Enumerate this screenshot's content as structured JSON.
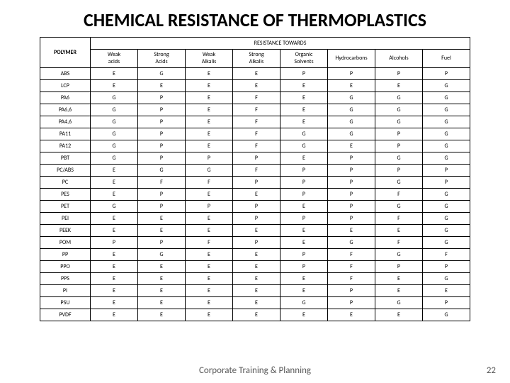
{
  "title": "CHEMICAL RESISTANCE OF THERMOPLASTICS",
  "group_header": "RESISTANCE TOWARDS",
  "polymer_header": "POLYMER",
  "columns": [
    "Weak acids",
    "Strong Acids",
    "Weak Alkalis",
    "Strong Alkalis",
    "Organic Solvents",
    "Hydrocarbons",
    "Alcohols",
    "Fuel"
  ],
  "rows": [
    {
      "polymer": "ABS",
      "vals": [
        "E",
        "G",
        "E",
        "E",
        "P",
        "P",
        "P",
        "P"
      ]
    },
    {
      "polymer": "LCP",
      "vals": [
        "E",
        "E",
        "E",
        "E",
        "E",
        "E",
        "E",
        "G"
      ]
    },
    {
      "polymer": "PA6",
      "vals": [
        "G",
        "P",
        "E",
        "F",
        "E",
        "G",
        "G",
        "G"
      ]
    },
    {
      "polymer": "PA6,6",
      "vals": [
        "G",
        "P",
        "E",
        "F",
        "E",
        "G",
        "G",
        "G"
      ]
    },
    {
      "polymer": "PA4,6",
      "vals": [
        "G",
        "P",
        "E",
        "F",
        "E",
        "G",
        "G",
        "G"
      ]
    },
    {
      "polymer": "PA11",
      "vals": [
        "G",
        "P",
        "E",
        "F",
        "G",
        "G",
        "P",
        "G"
      ]
    },
    {
      "polymer": "PA12",
      "vals": [
        "G",
        "P",
        "E",
        "F",
        "G",
        "E",
        "P",
        "G"
      ]
    },
    {
      "polymer": "PBT",
      "vals": [
        "G",
        "P",
        "P",
        "P",
        "E",
        "P",
        "G",
        "G"
      ]
    },
    {
      "polymer": "PC/ABS",
      "vals": [
        "E",
        "G",
        "G",
        "F",
        "P",
        "P",
        "P",
        "P"
      ]
    },
    {
      "polymer": "PC",
      "vals": [
        "E",
        "F",
        "F",
        "P",
        "P",
        "P",
        "G",
        "P"
      ]
    },
    {
      "polymer": "PES",
      "vals": [
        "E",
        "P",
        "E",
        "E",
        "P",
        "P",
        "F",
        "G"
      ]
    },
    {
      "polymer": "PET",
      "vals": [
        "G",
        "P",
        "P",
        "P",
        "E",
        "P",
        "G",
        "G"
      ]
    },
    {
      "polymer": "PEI",
      "vals": [
        "E",
        "E",
        "E",
        "P",
        "P",
        "P",
        "F",
        "G"
      ]
    },
    {
      "polymer": "PEEK",
      "vals": [
        "E",
        "E",
        "E",
        "E",
        "E",
        "E",
        "E",
        "G"
      ]
    },
    {
      "polymer": "POM",
      "vals": [
        "P",
        "P",
        "F",
        "P",
        "E",
        "G",
        "F",
        "G"
      ]
    },
    {
      "polymer": "PP",
      "vals": [
        "E",
        "G",
        "E",
        "E",
        "P",
        "F",
        "G",
        "F"
      ]
    },
    {
      "polymer": "PPO",
      "vals": [
        "E",
        "E",
        "E",
        "E",
        "P",
        "F",
        "P",
        "P"
      ]
    },
    {
      "polymer": "PPS",
      "vals": [
        "E",
        "E",
        "E",
        "E",
        "E",
        "F",
        "E",
        "G"
      ]
    },
    {
      "polymer": "PI",
      "vals": [
        "E",
        "E",
        "E",
        "E",
        "E",
        "P",
        "E",
        "E"
      ]
    },
    {
      "polymer": "PSU",
      "vals": [
        "E",
        "E",
        "E",
        "E",
        "G",
        "P",
        "G",
        "P"
      ]
    },
    {
      "polymer": "PVDF",
      "vals": [
        "E",
        "E",
        "E",
        "E",
        "E",
        "E",
        "E",
        "G"
      ]
    }
  ],
  "footer": "Corporate Training & Planning",
  "page_number": "22"
}
